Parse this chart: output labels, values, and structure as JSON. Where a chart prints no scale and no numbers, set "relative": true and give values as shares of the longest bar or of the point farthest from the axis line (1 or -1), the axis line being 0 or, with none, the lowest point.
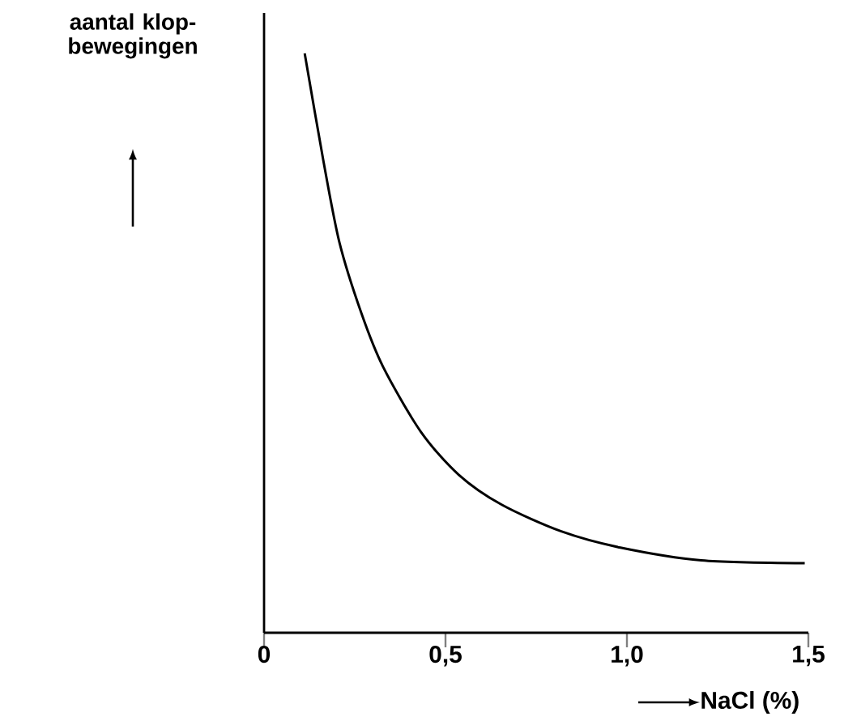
{
  "chart_data": {
    "type": "line",
    "relative": true,
    "xlabel": "NaCl (%)",
    "ylabel": "aantal klop-bewegingen",
    "xlim": [
      0,
      1.5
    ],
    "xticks": [
      0,
      {
        "value": 0.5,
        "label": "0,5"
      },
      {
        "value": 1.0,
        "label": "1,0"
      },
      {
        "value": 1.5,
        "label": "1,5"
      }
    ],
    "x": [
      0.112,
      0.164,
      0.208,
      0.268,
      0.328,
      0.432,
      0.536,
      0.655,
      0.819,
      0.982,
      1.205,
      1.49
    ],
    "values": [
      1,
      0.813,
      0.673,
      0.552,
      0.459,
      0.347,
      0.273,
      0.221,
      0.175,
      0.147,
      0.125,
      0.12
    ],
    "color": "#000000"
  }
}
